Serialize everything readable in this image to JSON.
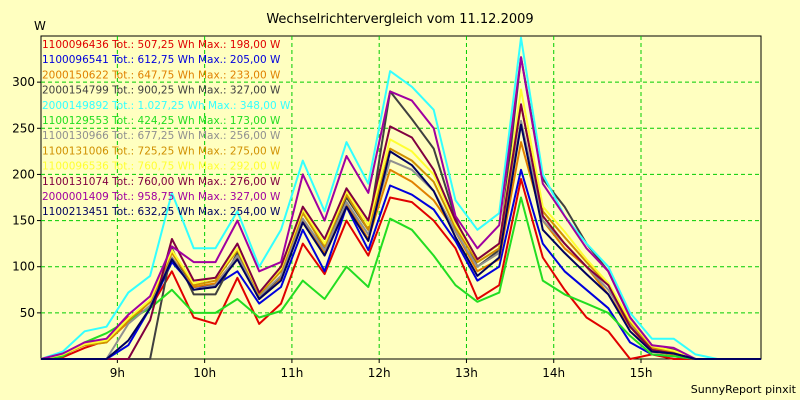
{
  "chart_data": {
    "type": "line",
    "title": "Wechselrichtervergleich vom 11.12.2009",
    "ylabel": "W",
    "xlabel": "",
    "footer": "SunnyReport pinxit",
    "grid": true,
    "legend_placement": "top-left",
    "xlim": [
      8.125,
      16.375
    ],
    "ylim": [
      0,
      350
    ],
    "yticks": [
      50,
      100,
      150,
      200,
      250,
      300
    ],
    "xticks": [
      {
        "value": 9,
        "label": "9h"
      },
      {
        "value": 10,
        "label": "10h"
      },
      {
        "value": 11,
        "label": "11h"
      },
      {
        "value": 12,
        "label": "12h"
      },
      {
        "value": 13,
        "label": "13h"
      },
      {
        "value": 14,
        "label": "14h"
      },
      {
        "value": 15,
        "label": "15h"
      }
    ],
    "x": [
      8.125,
      8.375,
      8.625,
      8.875,
      9.125,
      9.375,
      9.625,
      9.875,
      10.125,
      10.375,
      10.625,
      10.875,
      11.125,
      11.375,
      11.625,
      11.875,
      12.125,
      12.375,
      12.625,
      12.875,
      13.125,
      13.375,
      13.625,
      13.875,
      14.125,
      14.375,
      14.625,
      14.875,
      15.125,
      15.375,
      15.625,
      15.875,
      16.125,
      16.375
    ],
    "series": [
      {
        "name": "1100096436 Tot.: 507,25 Wh Max.: 198,00 W",
        "color": "#e00000",
        "values": [
          0,
          2,
          12,
          20,
          45,
          55,
          95,
          45,
          38,
          88,
          38,
          60,
          125,
          92,
          150,
          112,
          175,
          170,
          150,
          120,
          65,
          80,
          195,
          110,
          75,
          45,
          30,
          0,
          5,
          0,
          0,
          0,
          0,
          0
        ]
      },
      {
        "name": "1100096541 Tot.: 612,75 Wh Max.: 205,00 W",
        "color": "#0000dd",
        "values": [
          0,
          0,
          0,
          0,
          15,
          55,
          105,
          78,
          80,
          95,
          60,
          78,
          140,
          95,
          165,
          118,
          188,
          178,
          162,
          128,
          85,
          100,
          205,
          125,
          95,
          75,
          55,
          18,
          5,
          3,
          0,
          0,
          0,
          0
        ]
      },
      {
        "name": "2000150622 Tot.: 647,75 Wh Max.: 233,00 W",
        "color": "#e08000",
        "values": [
          0,
          5,
          15,
          18,
          40,
          62,
          110,
          78,
          82,
          110,
          65,
          88,
          150,
          115,
          168,
          130,
          205,
          192,
          172,
          138,
          95,
          108,
          235,
          150,
          120,
          100,
          70,
          35,
          8,
          5,
          0,
          0,
          0,
          0
        ]
      },
      {
        "name": "2000154799 Tot.: 900,25 Wh Max.: 327,00 W",
        "color": "#404040",
        "values": [
          0,
          0,
          0,
          0,
          0,
          0,
          120,
          70,
          70,
          115,
          65,
          90,
          160,
          120,
          175,
          140,
          290,
          260,
          228,
          152,
          100,
          118,
          327,
          195,
          165,
          125,
          95,
          45,
          15,
          10,
          0,
          0,
          0,
          0
        ]
      },
      {
        "name": "2000149892 Tot.: 1.027,25 Wh Max.: 348,00 W",
        "color": "#33ffff",
        "values": [
          0,
          8,
          30,
          35,
          72,
          90,
          180,
          120,
          120,
          160,
          100,
          140,
          215,
          160,
          235,
          190,
          312,
          295,
          270,
          172,
          140,
          158,
          348,
          200,
          155,
          125,
          100,
          50,
          22,
          22,
          5,
          0,
          0,
          0
        ]
      },
      {
        "name": "1100129553 Tot.: 424,25 Wh Max.: 173,00 W",
        "color": "#22dd22",
        "values": [
          0,
          3,
          18,
          28,
          42,
          55,
          75,
          50,
          50,
          65,
          45,
          52,
          85,
          65,
          100,
          78,
          152,
          140,
          112,
          80,
          62,
          72,
          175,
          85,
          70,
          60,
          50,
          25,
          5,
          3,
          0,
          0,
          0,
          0
        ]
      },
      {
        "name": "1100130966 Tot.: 677,25 Wh Max.: 256,00 W",
        "color": "#909090",
        "values": [
          0,
          0,
          0,
          0,
          38,
          58,
          110,
          75,
          80,
          112,
          68,
          90,
          152,
          118,
          170,
          135,
          215,
          205,
          182,
          138,
          100,
          115,
          258,
          150,
          125,
          100,
          75,
          38,
          12,
          8,
          0,
          0,
          0,
          0
        ]
      },
      {
        "name": "1100131006 Tot.: 725,25 Wh Max.: 275,00 W",
        "color": "#d09000",
        "values": [
          0,
          5,
          15,
          18,
          42,
          62,
          115,
          80,
          85,
          118,
          70,
          95,
          158,
          122,
          178,
          140,
          228,
          215,
          192,
          142,
          105,
          120,
          275,
          160,
          132,
          105,
          80,
          40,
          12,
          8,
          0,
          0,
          0,
          0
        ]
      },
      {
        "name": "1100096536 Tot.: 760,75 Wh Max.: 292,00 W",
        "color": "#ffff33",
        "values": [
          0,
          5,
          16,
          20,
          44,
          64,
          118,
          82,
          88,
          120,
          72,
          98,
          162,
          125,
          182,
          145,
          238,
          225,
          200,
          146,
          108,
          124,
          292,
          165,
          138,
          108,
          82,
          42,
          14,
          9,
          0,
          0,
          0,
          0
        ]
      },
      {
        "name": "1100131074 Tot.: 760,00 Wh Max.: 276,00 W",
        "color": "#800040",
        "values": [
          0,
          0,
          0,
          0,
          0,
          42,
          130,
          85,
          88,
          125,
          72,
          100,
          165,
          130,
          185,
          150,
          252,
          240,
          205,
          150,
          108,
          125,
          276,
          155,
          125,
          100,
          80,
          35,
          10,
          6,
          0,
          0,
          0,
          0
        ]
      },
      {
        "name": "2000001409 Tot.: 958,75 Wh Max.: 327,00 W",
        "color": "#a000a0",
        "values": [
          0,
          6,
          18,
          22,
          48,
          68,
          122,
          105,
          105,
          150,
          95,
          105,
          200,
          150,
          220,
          180,
          290,
          280,
          250,
          155,
          120,
          145,
          327,
          190,
          155,
          120,
          95,
          45,
          15,
          12,
          0,
          0,
          0,
          0
        ]
      },
      {
        "name": "1100213451 Tot.: 632,25 Wh Max.: 254,00 W",
        "color": "#000060",
        "values": [
          0,
          0,
          0,
          0,
          20,
          55,
          108,
          75,
          78,
          108,
          65,
          85,
          148,
          112,
          165,
          128,
          225,
          210,
          182,
          132,
          90,
          110,
          254,
          140,
          115,
          92,
          70,
          30,
          8,
          6,
          0,
          0,
          0,
          0
        ]
      }
    ]
  }
}
